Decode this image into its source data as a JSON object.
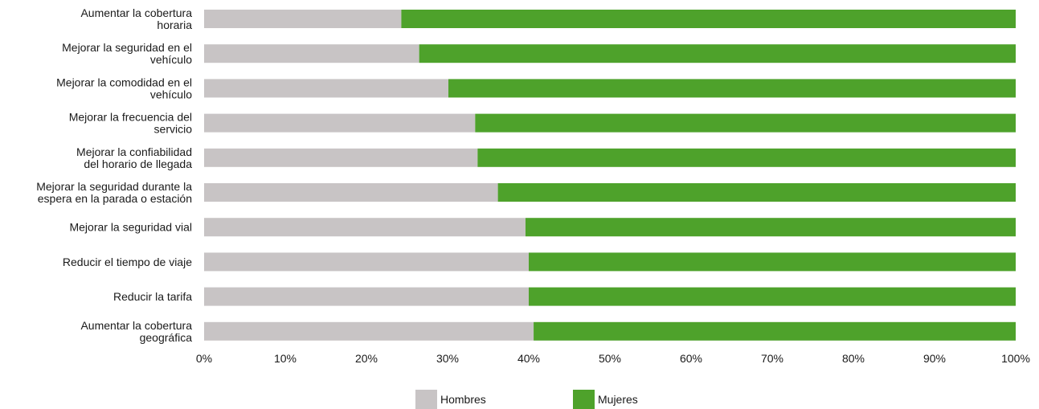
{
  "chart_data": {
    "type": "bar",
    "orientation": "horizontal",
    "stacked": "percent",
    "categories": [
      [
        "Aumentar la cobertura",
        "horaria"
      ],
      [
        "Mejorar la seguridad en el",
        "vehículo"
      ],
      [
        "Mejorar la comodidad en el",
        "vehículo"
      ],
      [
        "Mejorar la frecuencia del",
        "servicio"
      ],
      [
        "Mejorar la confiabilidad",
        "del horario de llegada"
      ],
      [
        "Mejorar la seguridad durante la",
        "espera en la parada o estación"
      ],
      [
        "Mejorar la seguridad vial"
      ],
      [
        "Reducir el tiempo de viaje"
      ],
      [
        "Reducir la tarifa"
      ],
      [
        "Aumentar la cobertura",
        "geográfica"
      ]
    ],
    "series": [
      {
        "name": "Hombres",
        "color": "#c8c4c5",
        "values": [
          24.3,
          26.5,
          30.1,
          33.4,
          33.7,
          36.2,
          39.6,
          40.0,
          40.0,
          40.6
        ]
      },
      {
        "name": "Mujeres",
        "color": "#4ea22b",
        "values": [
          75.7,
          73.5,
          69.9,
          66.6,
          66.3,
          63.8,
          60.4,
          60.0,
          60.0,
          59.4
        ]
      }
    ],
    "xlim": [
      0,
      100
    ],
    "xticks": [
      "0%",
      "10%",
      "20%",
      "30%",
      "40%",
      "50%",
      "60%",
      "70%",
      "80%",
      "90%",
      "100%"
    ],
    "legend_position": "bottom",
    "grid": false
  }
}
